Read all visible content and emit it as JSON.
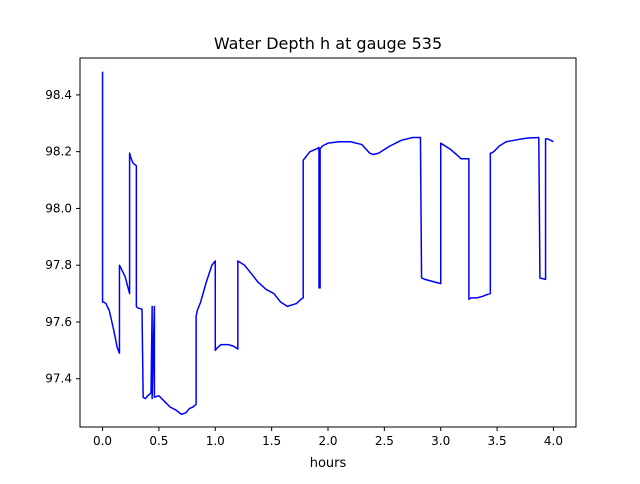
{
  "chart_data": {
    "type": "line",
    "title": "Water Depth h at gauge 535",
    "xlabel": "hours",
    "ylabel": "",
    "xlim": [
      -0.2,
      4.2
    ],
    "ylim": [
      97.23,
      98.53
    ],
    "xticks": [
      0.0,
      0.5,
      1.0,
      1.5,
      2.0,
      2.5,
      3.0,
      3.5,
      4.0
    ],
    "xtick_labels": [
      "0.0",
      "0.5",
      "1.0",
      "1.5",
      "2.0",
      "2.5",
      "3.0",
      "3.5",
      "4.0"
    ],
    "yticks": [
      97.4,
      97.6,
      97.8,
      98.0,
      98.2,
      98.4
    ],
    "ytick_labels": [
      "97.4",
      "97.6",
      "97.8",
      "98.0",
      "98.2",
      "98.4"
    ],
    "grid": false,
    "series": [
      {
        "color": "#0000ff",
        "x": [
          0.0,
          0.0,
          0.0,
          0.01,
          0.03,
          0.06,
          0.1,
          0.13,
          0.15,
          0.15,
          0.2,
          0.24,
          0.24,
          0.25,
          0.27,
          0.3,
          0.3,
          0.31,
          0.35,
          0.36,
          0.36,
          0.38,
          0.4,
          0.43,
          0.44,
          0.44,
          0.46,
          0.46,
          0.46,
          0.5,
          0.55,
          0.6,
          0.65,
          0.7,
          0.74,
          0.77,
          0.8,
          0.83,
          0.83,
          0.84,
          0.87,
          0.92,
          0.97,
          1.0,
          1.0,
          1.02,
          1.05,
          1.08,
          1.12,
          1.16,
          1.2,
          1.2,
          1.22,
          1.26,
          1.32,
          1.38,
          1.45,
          1.52,
          1.58,
          1.64,
          1.68,
          1.72,
          1.76,
          1.78,
          1.78,
          1.8,
          1.84,
          1.9,
          1.92,
          1.92,
          1.93,
          1.93,
          1.95,
          2.0,
          2.1,
          2.2,
          2.3,
          2.37,
          2.4,
          2.45,
          2.55,
          2.65,
          2.75,
          2.8,
          2.82,
          2.83,
          2.86,
          3.0,
          3.0,
          3.02,
          3.08,
          3.14,
          3.18,
          3.25,
          3.25,
          3.27,
          3.32,
          3.37,
          3.4,
          3.44,
          3.44,
          3.45,
          3.47,
          3.52,
          3.58,
          3.65,
          3.72,
          3.78,
          3.87,
          3.88,
          3.93,
          3.93,
          3.95,
          4.0
        ],
        "y": [
          97.99,
          98.48,
          97.67,
          97.67,
          97.665,
          97.64,
          97.57,
          97.51,
          97.49,
          97.8,
          97.76,
          97.7,
          98.195,
          98.18,
          98.16,
          98.15,
          97.655,
          97.65,
          97.645,
          97.34,
          97.335,
          97.33,
          97.34,
          97.35,
          97.655,
          97.33,
          97.655,
          97.35,
          97.335,
          97.34,
          97.32,
          97.3,
          97.29,
          97.275,
          97.28,
          97.295,
          97.3,
          97.31,
          97.62,
          97.64,
          97.67,
          97.74,
          97.8,
          97.815,
          97.5,
          97.51,
          97.52,
          97.52,
          97.52,
          97.515,
          97.505,
          97.815,
          97.81,
          97.8,
          97.77,
          97.74,
          97.715,
          97.7,
          97.67,
          97.655,
          97.66,
          97.665,
          97.68,
          97.685,
          98.17,
          98.18,
          98.2,
          98.21,
          98.215,
          97.72,
          97.72,
          98.21,
          98.22,
          98.23,
          98.235,
          98.235,
          98.225,
          98.195,
          98.19,
          98.195,
          98.22,
          98.24,
          98.25,
          98.25,
          98.25,
          97.755,
          97.75,
          97.735,
          98.23,
          98.225,
          98.21,
          98.19,
          98.175,
          98.175,
          97.68,
          97.685,
          97.685,
          97.69,
          97.695,
          97.7,
          98.195,
          98.195,
          98.2,
          98.22,
          98.235,
          98.24,
          98.245,
          98.248,
          98.25,
          97.755,
          97.75,
          98.245,
          98.245,
          98.235
        ]
      }
    ]
  }
}
